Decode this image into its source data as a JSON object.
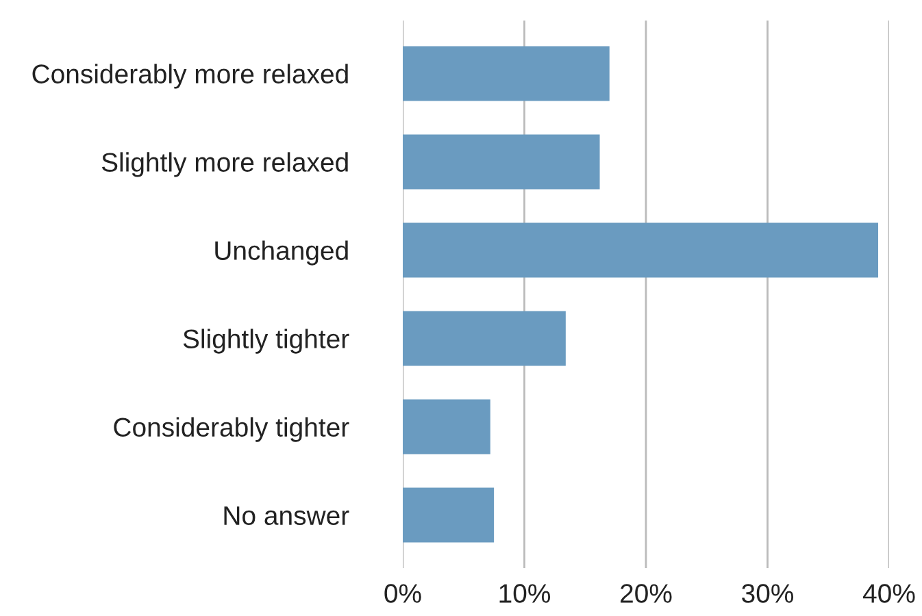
{
  "chart_data": {
    "type": "bar",
    "orientation": "horizontal",
    "categories": [
      "Considerably more relaxed",
      "Slightly more relaxed",
      "Unchanged",
      "Slightly tighter",
      "Considerably tighter",
      "No answer"
    ],
    "values": [
      17.0,
      16.2,
      39.1,
      13.4,
      7.2,
      7.5
    ],
    "color": "#6a9bc0",
    "xlim": [
      0,
      40
    ],
    "xticks": [
      {
        "value": 0,
        "label": "0%"
      },
      {
        "value": 10,
        "label": "10%"
      },
      {
        "value": 20,
        "label": "20%"
      },
      {
        "value": 30,
        "label": "30%"
      },
      {
        "value": 40,
        "label": "40%"
      }
    ],
    "grid": "x"
  }
}
